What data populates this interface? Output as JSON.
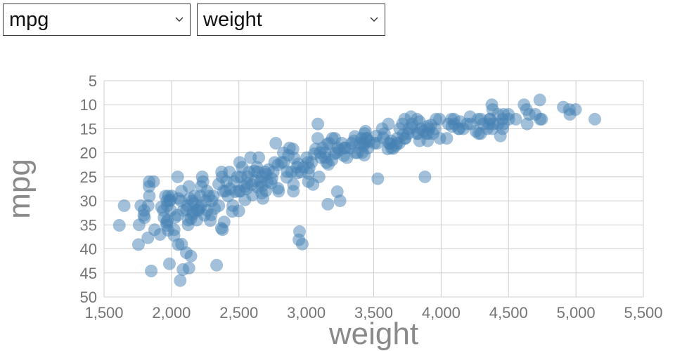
{
  "controls": {
    "y_select": {
      "value": "mpg"
    },
    "x_select": {
      "value": "weight"
    }
  },
  "chart_data": {
    "type": "scatter",
    "title": "",
    "xlabel": "weight",
    "ylabel": "mpg",
    "xlim": [
      1500,
      5500
    ],
    "ylim": [
      5,
      50
    ],
    "x_tick_step": 500,
    "y_tick_step": 5,
    "y_inverted": true,
    "grid": true,
    "grid_color": "#cfcfcf",
    "tick_color": "#757575",
    "label_color": "#8a8a8a",
    "marker": {
      "color": "#4682b4",
      "opacity": 0.5,
      "radius": 9
    },
    "points": [
      [
        4042,
        17
      ],
      [
        4054,
        14
      ],
      [
        4077,
        13
      ],
      [
        4080,
        14.5
      ],
      [
        4096,
        13
      ],
      [
        4098,
        14
      ],
      [
        4129,
        15
      ],
      [
        4135,
        15
      ],
      [
        4140,
        13.5
      ],
      [
        4165,
        15
      ],
      [
        4190,
        14
      ],
      [
        4215,
        12.5
      ],
      [
        4220,
        14
      ],
      [
        4257,
        15.5
      ],
      [
        4274,
        13
      ],
      [
        4278,
        16
      ],
      [
        4294,
        16
      ],
      [
        4295,
        13
      ],
      [
        4312,
        14
      ],
      [
        4341,
        15
      ],
      [
        4354,
        14
      ],
      [
        4360,
        13
      ],
      [
        4363,
        13
      ],
      [
        4376,
        10
      ],
      [
        4380,
        15
      ],
      [
        4382,
        11
      ],
      [
        4385,
        14
      ],
      [
        4422,
        12
      ],
      [
        4425,
        14
      ],
      [
        4440,
        16.5
      ],
      [
        4456,
        13
      ],
      [
        4457,
        15
      ],
      [
        4462,
        14
      ],
      [
        4464,
        12
      ],
      [
        4499,
        12
      ],
      [
        4502,
        13
      ],
      [
        4554,
        13
      ],
      [
        4615,
        10
      ],
      [
        4633,
        11
      ],
      [
        4638,
        14
      ],
      [
        4654,
        12
      ],
      [
        4699,
        12
      ],
      [
        4732,
        9
      ],
      [
        4735,
        13
      ],
      [
        4746,
        13
      ],
      [
        4906,
        10.5
      ],
      [
        4951,
        11
      ],
      [
        4955,
        12
      ],
      [
        4997,
        11
      ],
      [
        5140,
        13
      ],
      [
        3693,
        15
      ],
      [
        3713,
        14
      ],
      [
        3730,
        17
      ],
      [
        3735,
        17
      ],
      [
        3755,
        16
      ],
      [
        3761,
        15
      ],
      [
        3777,
        12.5
      ],
      [
        3785,
        14
      ],
      [
        3820,
        16
      ],
      [
        3821,
        13
      ],
      [
        3830,
        16
      ],
      [
        3840,
        13.5
      ],
      [
        3850,
        15
      ],
      [
        3870,
        15.5
      ],
      [
        3880,
        25
      ],
      [
        3892,
        16
      ],
      [
        3897,
        14.5
      ],
      [
        3900,
        17.5
      ],
      [
        3910,
        15
      ],
      [
        3940,
        16
      ],
      [
        3955,
        15
      ],
      [
        3962,
        13
      ],
      [
        3988,
        13
      ],
      [
        3990,
        17
      ],
      [
        3907,
        16
      ],
      [
        3730,
        13
      ],
      [
        3781,
        14.8
      ],
      [
        3925,
        14.2
      ],
      [
        3718,
        16.2
      ],
      [
        3840,
        17.5
      ],
      [
        3410,
        17
      ],
      [
        3415,
        19.9
      ],
      [
        3420,
        18
      ],
      [
        3425,
        18.5
      ],
      [
        3430,
        20.5
      ],
      [
        3433,
        16
      ],
      [
        3436,
        18
      ],
      [
        3439,
        15.5
      ],
      [
        3445,
        17
      ],
      [
        3449,
        17
      ],
      [
        3459,
        19
      ],
      [
        3465,
        17.6
      ],
      [
        3504,
        18
      ],
      [
        3520,
        16.5
      ],
      [
        3525,
        18
      ],
      [
        3530,
        25.4
      ],
      [
        3563,
        15
      ],
      [
        3570,
        16.9
      ],
      [
        3580,
        16
      ],
      [
        3605,
        19.2
      ],
      [
        3609,
        14
      ],
      [
        3613,
        18
      ],
      [
        3620,
        18.1
      ],
      [
        3630,
        17.5
      ],
      [
        3632,
        19
      ],
      [
        3645,
        19.1
      ],
      [
        3664,
        18.5
      ],
      [
        3672,
        18
      ],
      [
        3675,
        17
      ],
      [
        3690,
        18
      ],
      [
        3102,
        20
      ],
      [
        3110,
        21
      ],
      [
        3121,
        19
      ],
      [
        3139,
        20
      ],
      [
        3140,
        21
      ],
      [
        3150,
        22
      ],
      [
        3155,
        18.2
      ],
      [
        3160,
        30.7
      ],
      [
        3164,
        22.4
      ],
      [
        3169,
        18
      ],
      [
        3190,
        21.5
      ],
      [
        3193,
        17
      ],
      [
        3210,
        20.2
      ],
      [
        3211,
        17
      ],
      [
        3221,
        20
      ],
      [
        3230,
        28.1
      ],
      [
        3233,
        19
      ],
      [
        3245,
        19.4
      ],
      [
        3250,
        30
      ],
      [
        3264,
        18
      ],
      [
        3278,
        20.6
      ],
      [
        3282,
        19
      ],
      [
        3288,
        19
      ],
      [
        3302,
        21
      ],
      [
        3329,
        19
      ],
      [
        3336,
        18
      ],
      [
        3353,
        17.5
      ],
      [
        3360,
        16.6
      ],
      [
        3365,
        20
      ],
      [
        3381,
        20
      ],
      [
        3399,
        18
      ],
      [
        2815,
        22
      ],
      [
        2830,
        20
      ],
      [
        2833,
        22
      ],
      [
        2855,
        25.1
      ],
      [
        2858,
        23.9
      ],
      [
        2868,
        20.5
      ],
      [
        2875,
        19
      ],
      [
        2890,
        24
      ],
      [
        2901,
        19.2
      ],
      [
        2904,
        28
      ],
      [
        2905,
        26.6
      ],
      [
        2910,
        21.1
      ],
      [
        2930,
        23
      ],
      [
        2933,
        24.2
      ],
      [
        2945,
        38.1
      ],
      [
        2950,
        36.4
      ],
      [
        2962,
        24
      ],
      [
        2970,
        39
      ],
      [
        2979,
        23
      ],
      [
        3003,
        21
      ],
      [
        3012,
        22
      ],
      [
        3015,
        26
      ],
      [
        3016,
        24.3
      ],
      [
        3021,
        23.2
      ],
      [
        3039,
        22
      ],
      [
        3060,
        20.2
      ],
      [
        3070,
        19.2
      ],
      [
        3085,
        17
      ],
      [
        3086,
        14
      ],
      [
        2940,
        22.3
      ],
      [
        3095,
        25
      ],
      [
        3050,
        26.6
      ],
      [
        2500,
        28
      ],
      [
        2506,
        22
      ],
      [
        2511,
        28
      ],
      [
        2515,
        25
      ],
      [
        2524,
        23
      ],
      [
        2542,
        27
      ],
      [
        2545,
        29.8
      ],
      [
        2556,
        27.5
      ],
      [
        2560,
        26.4
      ],
      [
        2565,
        25
      ],
      [
        2575,
        24
      ],
      [
        2587,
        21
      ],
      [
        2595,
        26.6
      ],
      [
        2600,
        28.8
      ],
      [
        2615,
        23.8
      ],
      [
        2620,
        25.8
      ],
      [
        2634,
        23
      ],
      [
        2639,
        24
      ],
      [
        2640,
        27.2
      ],
      [
        2648,
        21
      ],
      [
        2660,
        26
      ],
      [
        2670,
        28.4
      ],
      [
        2671,
        27
      ],
      [
        2672,
        25
      ],
      [
        2678,
        29.5
      ],
      [
        2694,
        24
      ],
      [
        2700,
        27.9
      ],
      [
        2702,
        24.5
      ],
      [
        2711,
        26
      ],
      [
        2720,
        23.5
      ],
      [
        2740,
        26.3
      ],
      [
        2745,
        25.4
      ],
      [
        2755,
        24
      ],
      [
        2765,
        22
      ],
      [
        2774,
        18
      ],
      [
        2789,
        22.5
      ],
      [
        2790,
        27.4
      ],
      [
        2795,
        28
      ],
      [
        2205,
        31.5
      ],
      [
        2215,
        29
      ],
      [
        2219,
        31
      ],
      [
        2220,
        27
      ],
      [
        2228,
        25
      ],
      [
        2234,
        26
      ],
      [
        2245,
        33
      ],
      [
        2254,
        30
      ],
      [
        2264,
        28
      ],
      [
        2265,
        32
      ],
      [
        2278,
        29
      ],
      [
        2288,
        34.1
      ],
      [
        2295,
        32.9
      ],
      [
        2300,
        30
      ],
      [
        2310,
        29
      ],
      [
        2320,
        31.6
      ],
      [
        2335,
        43.4
      ],
      [
        2350,
        26.5
      ],
      [
        2351,
        31
      ],
      [
        2370,
        35.7
      ],
      [
        2372,
        24
      ],
      [
        2375,
        25
      ],
      [
        2379,
        36
      ],
      [
        2385,
        28
      ],
      [
        2391,
        34.4
      ],
      [
        2401,
        28
      ],
      [
        2408,
        26
      ],
      [
        2420,
        29
      ],
      [
        2430,
        24
      ],
      [
        2434,
        27.5
      ],
      [
        2451,
        32.2
      ],
      [
        2455,
        31
      ],
      [
        2464,
        26
      ],
      [
        2475,
        28.1
      ],
      [
        2490,
        25
      ],
      [
        2499,
        32.1
      ],
      [
        2003,
        29
      ],
      [
        2019,
        37.2
      ],
      [
        2020,
        36
      ],
      [
        2025,
        33.5
      ],
      [
        2045,
        33
      ],
      [
        2046,
        25
      ],
      [
        2050,
        39.1
      ],
      [
        2051,
        29.5
      ],
      [
        2065,
        46.6
      ],
      [
        2070,
        30
      ],
      [
        2074,
        28
      ],
      [
        2085,
        44.3
      ],
      [
        2088,
        32
      ],
      [
        2110,
        40.8
      ],
      [
        2112,
        31.8
      ],
      [
        2120,
        31
      ],
      [
        2123,
        35
      ],
      [
        2125,
        34
      ],
      [
        2130,
        27
      ],
      [
        2130,
        44
      ],
      [
        2135,
        29.5
      ],
      [
        2144,
        41.5
      ],
      [
        2145,
        33.7
      ],
      [
        2155,
        30
      ],
      [
        2158,
        32.8
      ],
      [
        2160,
        32.4
      ],
      [
        2164,
        30.5
      ],
      [
        2171,
        29
      ],
      [
        2188,
        34
      ],
      [
        2190,
        31.9
      ],
      [
        2200,
        32
      ],
      [
        2075,
        39
      ],
      [
        1613,
        35.1
      ],
      [
        1649,
        31
      ],
      [
        1755,
        39.1
      ],
      [
        1760,
        35
      ],
      [
        1773,
        31
      ],
      [
        1795,
        33
      ],
      [
        1797,
        32
      ],
      [
        1800,
        33.5
      ],
      [
        1825,
        37.7
      ],
      [
        1827,
        31
      ],
      [
        1834,
        27
      ],
      [
        1835,
        26
      ],
      [
        1836,
        29
      ],
      [
        1850,
        44.6
      ],
      [
        1867,
        26
      ],
      [
        1875,
        36
      ],
      [
        1915,
        37
      ],
      [
        1925,
        31.3
      ],
      [
        1940,
        32
      ],
      [
        1945,
        33.5
      ],
      [
        1955,
        29
      ],
      [
        1963,
        34.5
      ],
      [
        1965,
        35.1
      ],
      [
        1967,
        30
      ],
      [
        1968,
        31
      ],
      [
        1970,
        34.1
      ],
      [
        1975,
        36.1
      ],
      [
        1977,
        29
      ],
      [
        1985,
        43.1
      ],
      [
        1988,
        30
      ],
      [
        1990,
        29.8
      ],
      [
        1995,
        32
      ]
    ]
  }
}
